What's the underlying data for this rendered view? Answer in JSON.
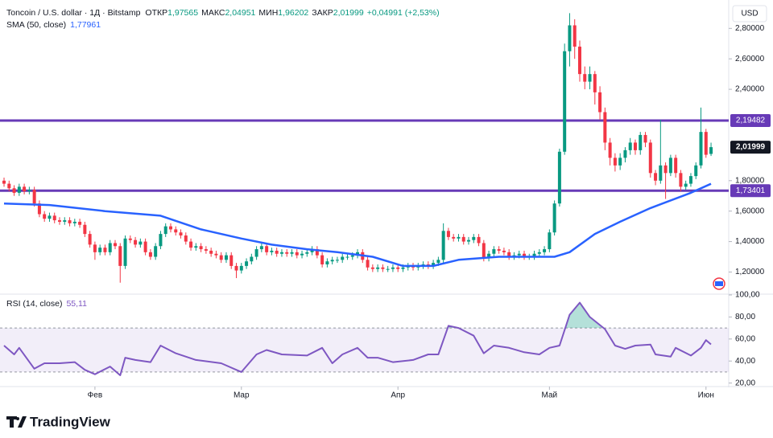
{
  "header": {
    "title": "Toncoin / U.S. dollar · 1Д · Bitstamp",
    "items": [
      {
        "label": "ОТКР",
        "value": "1,97565"
      },
      {
        "label": "МАКС",
        "value": "2,04951"
      },
      {
        "label": "МИН",
        "value": "1,96202"
      },
      {
        "label": "ЗАКР",
        "value": "2,01999"
      }
    ],
    "change": "+0,04991 (+2,53%)",
    "currency": "USD"
  },
  "brand": "TradingView",
  "chart_data": {
    "type": "candlestick",
    "up_color": "#089981",
    "down_color": "#f23645",
    "grid": false,
    "xlim": [
      -0.8,
      143.5
    ],
    "xticks": [
      {
        "value": 18,
        "label": "Фев"
      },
      {
        "value": 47,
        "label": "Мар"
      },
      {
        "value": 78,
        "label": "Апр"
      },
      {
        "value": 108,
        "label": "Май"
      },
      {
        "value": 139,
        "label": "Июн"
      }
    ],
    "ylim": [
      1.06,
      2.96
    ],
    "yticks": [
      {
        "value": 2.8,
        "label": "2,80000"
      },
      {
        "value": 2.6,
        "label": "2,60000"
      },
      {
        "value": 2.4,
        "label": "2,40000"
      },
      {
        "value": 1.8,
        "label": "1,80000"
      },
      {
        "value": 1.6,
        "label": "1,60000"
      },
      {
        "value": 1.4,
        "label": "1,40000"
      },
      {
        "value": 1.2,
        "label": "1,20000"
      }
    ],
    "ohlc": [
      [
        1.8,
        1.82,
        1.76,
        1.78
      ],
      [
        1.78,
        1.8,
        1.73,
        1.75
      ],
      [
        1.75,
        1.77,
        1.7,
        1.72
      ],
      [
        1.72,
        1.78,
        1.7,
        1.76
      ],
      [
        1.76,
        1.78,
        1.71,
        1.73
      ],
      [
        1.73,
        1.76,
        1.71,
        1.74
      ],
      [
        1.74,
        1.76,
        1.63,
        1.65
      ],
      [
        1.65,
        1.67,
        1.56,
        1.58
      ],
      [
        1.58,
        1.6,
        1.53,
        1.55
      ],
      [
        1.55,
        1.59,
        1.53,
        1.57
      ],
      [
        1.57,
        1.59,
        1.52,
        1.54
      ],
      [
        1.54,
        1.56,
        1.51,
        1.53
      ],
      [
        1.53,
        1.56,
        1.51,
        1.54
      ],
      [
        1.54,
        1.56,
        1.5,
        1.52
      ],
      [
        1.52,
        1.55,
        1.5,
        1.53
      ],
      [
        1.53,
        1.55,
        1.49,
        1.51
      ],
      [
        1.51,
        1.53,
        1.43,
        1.45
      ],
      [
        1.45,
        1.47,
        1.36,
        1.38
      ],
      [
        1.38,
        1.4,
        1.28,
        1.33
      ],
      [
        1.33,
        1.38,
        1.31,
        1.36
      ],
      [
        1.36,
        1.38,
        1.31,
        1.33
      ],
      [
        1.33,
        1.41,
        1.31,
        1.39
      ],
      [
        1.39,
        1.41,
        1.35,
        1.37
      ],
      [
        1.37,
        1.39,
        1.13,
        1.24
      ],
      [
        1.24,
        1.44,
        1.22,
        1.42
      ],
      [
        1.42,
        1.44,
        1.39,
        1.41
      ],
      [
        1.41,
        1.43,
        1.36,
        1.38
      ],
      [
        1.38,
        1.42,
        1.36,
        1.4
      ],
      [
        1.4,
        1.42,
        1.31,
        1.33
      ],
      [
        1.33,
        1.35,
        1.28,
        1.3
      ],
      [
        1.3,
        1.39,
        1.28,
        1.37
      ],
      [
        1.37,
        1.47,
        1.35,
        1.45
      ],
      [
        1.45,
        1.52,
        1.43,
        1.5
      ],
      [
        1.5,
        1.52,
        1.46,
        1.48
      ],
      [
        1.48,
        1.5,
        1.44,
        1.46
      ],
      [
        1.46,
        1.48,
        1.42,
        1.44
      ],
      [
        1.44,
        1.46,
        1.38,
        1.4
      ],
      [
        1.4,
        1.42,
        1.34,
        1.36
      ],
      [
        1.36,
        1.39,
        1.34,
        1.37
      ],
      [
        1.37,
        1.39,
        1.33,
        1.35
      ],
      [
        1.35,
        1.37,
        1.32,
        1.34
      ],
      [
        1.34,
        1.36,
        1.3,
        1.32
      ],
      [
        1.32,
        1.34,
        1.29,
        1.31
      ],
      [
        1.31,
        1.33,
        1.26,
        1.28
      ],
      [
        1.28,
        1.33,
        1.26,
        1.31
      ],
      [
        1.31,
        1.33,
        1.22,
        1.24
      ],
      [
        1.24,
        1.26,
        1.16,
        1.21
      ],
      [
        1.21,
        1.26,
        1.19,
        1.24
      ],
      [
        1.24,
        1.29,
        1.22,
        1.27
      ],
      [
        1.27,
        1.32,
        1.25,
        1.3
      ],
      [
        1.3,
        1.37,
        1.28,
        1.35
      ],
      [
        1.35,
        1.39,
        1.33,
        1.37
      ],
      [
        1.37,
        1.39,
        1.31,
        1.33
      ],
      [
        1.33,
        1.36,
        1.31,
        1.34
      ],
      [
        1.34,
        1.36,
        1.3,
        1.32
      ],
      [
        1.32,
        1.35,
        1.3,
        1.33
      ],
      [
        1.33,
        1.35,
        1.3,
        1.32
      ],
      [
        1.32,
        1.35,
        1.3,
        1.33
      ],
      [
        1.33,
        1.35,
        1.29,
        1.31
      ],
      [
        1.31,
        1.34,
        1.29,
        1.32
      ],
      [
        1.32,
        1.35,
        1.3,
        1.33
      ],
      [
        1.33,
        1.37,
        1.31,
        1.35
      ],
      [
        1.35,
        1.37,
        1.29,
        1.31
      ],
      [
        1.31,
        1.33,
        1.23,
        1.25
      ],
      [
        1.25,
        1.29,
        1.23,
        1.27
      ],
      [
        1.27,
        1.3,
        1.25,
        1.28
      ],
      [
        1.28,
        1.3,
        1.26,
        1.28
      ],
      [
        1.28,
        1.32,
        1.26,
        1.3
      ],
      [
        1.3,
        1.32,
        1.28,
        1.3
      ],
      [
        1.3,
        1.33,
        1.28,
        1.31
      ],
      [
        1.31,
        1.35,
        1.29,
        1.33
      ],
      [
        1.33,
        1.35,
        1.26,
        1.28
      ],
      [
        1.28,
        1.3,
        1.21,
        1.23
      ],
      [
        1.23,
        1.25,
        1.2,
        1.22
      ],
      [
        1.22,
        1.25,
        1.2,
        1.23
      ],
      [
        1.23,
        1.25,
        1.2,
        1.22
      ],
      [
        1.22,
        1.24,
        1.2,
        1.22
      ],
      [
        1.22,
        1.25,
        1.2,
        1.23
      ],
      [
        1.23,
        1.25,
        1.2,
        1.22
      ],
      [
        1.22,
        1.25,
        1.2,
        1.23
      ],
      [
        1.23,
        1.26,
        1.21,
        1.24
      ],
      [
        1.24,
        1.26,
        1.21,
        1.23
      ],
      [
        1.23,
        1.26,
        1.21,
        1.24
      ],
      [
        1.24,
        1.27,
        1.22,
        1.25
      ],
      [
        1.25,
        1.27,
        1.22,
        1.24
      ],
      [
        1.24,
        1.28,
        1.22,
        1.26
      ],
      [
        1.26,
        1.3,
        1.24,
        1.28
      ],
      [
        1.28,
        1.52,
        1.26,
        1.47
      ],
      [
        1.47,
        1.49,
        1.41,
        1.43
      ],
      [
        1.43,
        1.45,
        1.4,
        1.42
      ],
      [
        1.42,
        1.45,
        1.4,
        1.43
      ],
      [
        1.43,
        1.45,
        1.38,
        1.4
      ],
      [
        1.4,
        1.43,
        1.38,
        1.41
      ],
      [
        1.41,
        1.45,
        1.39,
        1.43
      ],
      [
        1.43,
        1.45,
        1.37,
        1.39
      ],
      [
        1.39,
        1.41,
        1.27,
        1.29
      ],
      [
        1.29,
        1.34,
        1.27,
        1.32
      ],
      [
        1.32,
        1.37,
        1.3,
        1.35
      ],
      [
        1.35,
        1.37,
        1.32,
        1.34
      ],
      [
        1.34,
        1.36,
        1.31,
        1.33
      ],
      [
        1.33,
        1.35,
        1.28,
        1.3
      ],
      [
        1.3,
        1.33,
        1.28,
        1.31
      ],
      [
        1.31,
        1.34,
        1.29,
        1.32
      ],
      [
        1.32,
        1.34,
        1.28,
        1.3
      ],
      [
        1.3,
        1.32,
        1.28,
        1.3
      ],
      [
        1.3,
        1.34,
        1.28,
        1.32
      ],
      [
        1.32,
        1.35,
        1.3,
        1.33
      ],
      [
        1.33,
        1.37,
        1.31,
        1.35
      ],
      [
        1.35,
        1.48,
        1.33,
        1.46
      ],
      [
        1.46,
        1.67,
        1.44,
        1.65
      ],
      [
        1.65,
        2.01,
        1.63,
        1.99
      ],
      [
        1.99,
        2.7,
        1.97,
        2.65
      ],
      [
        2.65,
        2.9,
        2.55,
        2.82
      ],
      [
        2.82,
        2.86,
        2.6,
        2.68
      ],
      [
        2.68,
        2.72,
        2.45,
        2.5
      ],
      [
        2.5,
        2.55,
        2.4,
        2.45
      ],
      [
        2.45,
        2.55,
        2.4,
        2.5
      ],
      [
        2.5,
        2.52,
        2.3,
        2.38
      ],
      [
        2.38,
        2.42,
        2.2,
        2.25
      ],
      [
        2.25,
        2.28,
        2.0,
        2.05
      ],
      [
        2.05,
        2.08,
        1.9,
        1.95
      ],
      [
        1.95,
        1.98,
        1.86,
        1.9
      ],
      [
        1.9,
        1.98,
        1.87,
        1.95
      ],
      [
        1.95,
        2.02,
        1.92,
        2.0
      ],
      [
        2.0,
        2.08,
        1.97,
        2.05
      ],
      [
        2.05,
        2.07,
        1.97,
        2.0
      ],
      [
        2.0,
        2.12,
        1.97,
        2.1
      ],
      [
        2.1,
        2.12,
        2.02,
        2.05
      ],
      [
        2.05,
        2.07,
        1.82,
        1.85
      ],
      [
        1.85,
        1.87,
        1.77,
        1.8
      ],
      [
        1.8,
        2.2,
        1.78,
        1.9
      ],
      [
        1.9,
        1.92,
        1.68,
        1.85
      ],
      [
        1.85,
        1.97,
        1.83,
        1.95
      ],
      [
        1.95,
        1.97,
        1.82,
        1.85
      ],
      [
        1.85,
        1.87,
        1.73,
        1.76
      ],
      [
        1.76,
        1.8,
        1.74,
        1.78
      ],
      [
        1.78,
        1.85,
        1.76,
        1.83
      ],
      [
        1.83,
        1.92,
        1.81,
        1.9
      ],
      [
        1.9,
        2.28,
        1.88,
        2.12
      ],
      [
        2.12,
        2.14,
        1.95,
        1.97
      ],
      [
        1.97565,
        2.04951,
        1.96202,
        2.01999
      ]
    ],
    "sma": {
      "name": "SMA (50, close)",
      "value_label": "1,77961",
      "color": "#2962ff",
      "x": [
        0,
        9,
        20,
        31,
        39,
        47,
        53,
        60,
        66,
        73,
        79,
        85,
        90,
        98,
        109,
        112,
        117,
        122,
        128,
        136,
        140
      ],
      "values": [
        1.65,
        1.64,
        1.6,
        1.57,
        1.48,
        1.42,
        1.38,
        1.35,
        1.33,
        1.3,
        1.24,
        1.24,
        1.28,
        1.3,
        1.3,
        1.33,
        1.45,
        1.53,
        1.62,
        1.72,
        1.77961
      ]
    },
    "levels": [
      {
        "value": 2.19482,
        "label": "2,19482"
      },
      {
        "value": 1.73401,
        "label": "1,73401"
      }
    ],
    "level_color": "#673ab7",
    "last_price": {
      "value": 2.01999,
      "label": "2,01999"
    },
    "rsi": {
      "name": "RSI (14, close)",
      "value_label": "55,11",
      "color": "#7e57c2",
      "ylim": [
        19,
        100
      ],
      "bands": [
        30,
        70
      ],
      "yticks": [
        {
          "value": 100,
          "label": "100,00"
        },
        {
          "value": 80,
          "label": "80,00"
        },
        {
          "value": 60,
          "label": "60,00"
        },
        {
          "value": 40,
          "label": "40,00"
        },
        {
          "value": 20,
          "label": "20,00"
        }
      ],
      "x": [
        0,
        2,
        3,
        6,
        8,
        11,
        14,
        16,
        18,
        21,
        23,
        24,
        26,
        29,
        31,
        34,
        38,
        43,
        47,
        50,
        52,
        55,
        60,
        63,
        65,
        67,
        70,
        72,
        74,
        77,
        81,
        84,
        86,
        88,
        90,
        93,
        95,
        97,
        100,
        103,
        106,
        108,
        110,
        112,
        114,
        116,
        119,
        121,
        123,
        125,
        128,
        129,
        132,
        133,
        136,
        138,
        139,
        140
      ],
      "values": [
        54,
        46,
        52,
        33,
        38,
        38,
        39,
        32,
        28,
        35,
        27,
        43,
        41,
        39,
        54,
        47,
        41,
        38,
        30,
        46,
        50,
        46,
        45,
        52,
        38,
        46,
        52,
        43,
        43,
        39,
        41,
        46,
        46,
        72,
        70,
        63,
        47,
        54,
        52,
        48,
        46,
        52,
        54,
        82,
        93,
        80,
        69,
        54,
        51,
        54,
        55,
        46,
        44,
        52,
        45,
        52,
        59,
        55.11
      ]
    }
  }
}
